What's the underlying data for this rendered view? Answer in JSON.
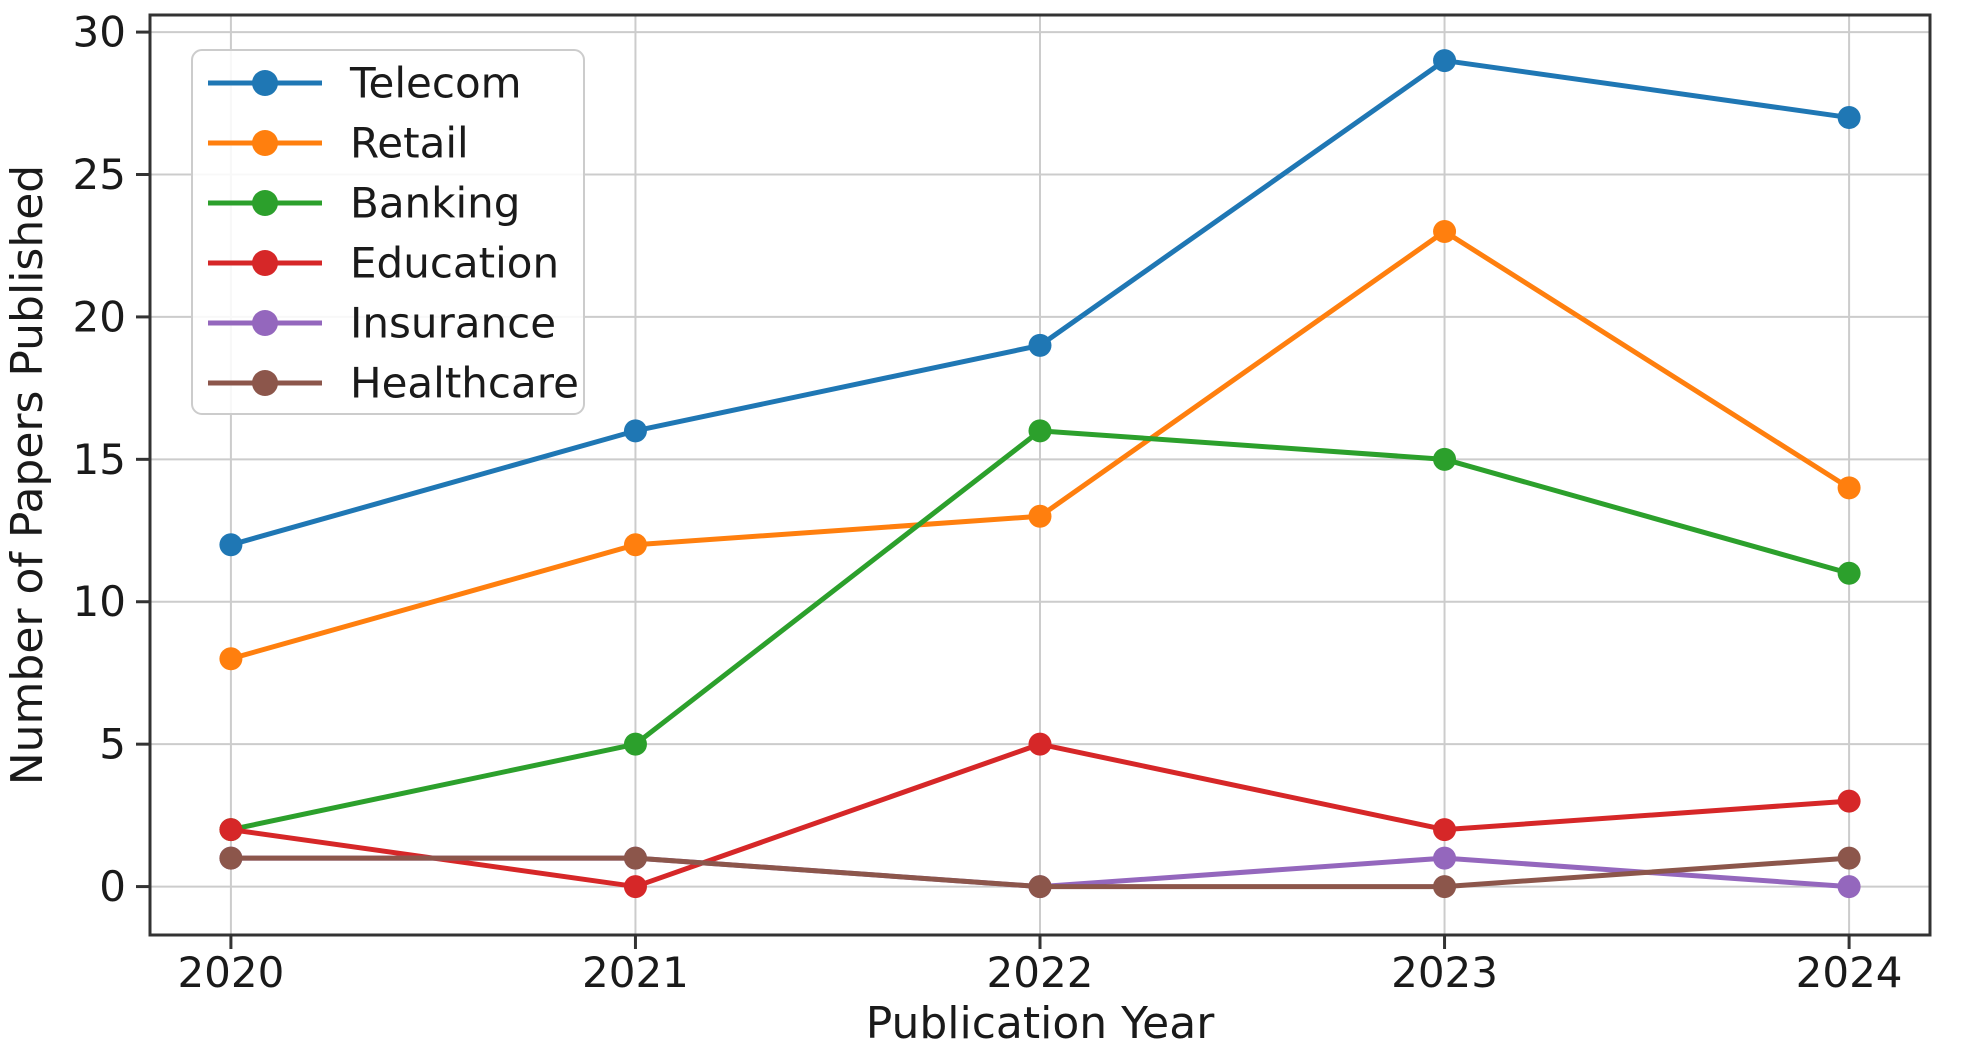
{
  "chart_data": {
    "type": "line",
    "title": "",
    "xlabel": "Publication Year",
    "ylabel": "Number of Papers Published",
    "x": [
      2020,
      2021,
      2022,
      2023,
      2024
    ],
    "x_tick_labels": [
      "2020",
      "2021",
      "2022",
      "2023",
      "2024"
    ],
    "y_ticks": [
      0,
      5,
      10,
      15,
      20,
      25,
      30
    ],
    "xlim": [
      2019.8,
      2024.2
    ],
    "ylim": [
      -1.7,
      30.6
    ],
    "grid": true,
    "legend_position": "upper left",
    "series": [
      {
        "name": "Telecom",
        "color": "#1f77b4",
        "values": [
          12,
          16,
          19,
          29,
          27
        ]
      },
      {
        "name": "Retail",
        "color": "#ff7f0e",
        "values": [
          8,
          12,
          13,
          23,
          14
        ]
      },
      {
        "name": "Banking",
        "color": "#2ca02c",
        "values": [
          2,
          5,
          16,
          15,
          11
        ]
      },
      {
        "name": "Education",
        "color": "#d62728",
        "values": [
          2,
          0,
          5,
          2,
          3
        ]
      },
      {
        "name": "Insurance",
        "color": "#9467bd",
        "values": [
          1,
          1,
          0,
          1,
          0
        ]
      },
      {
        "name": "Healthcare",
        "color": "#8c564b",
        "values": [
          1,
          1,
          0,
          0,
          1
        ]
      }
    ],
    "style": {
      "grid_color": "#cccccc",
      "spine_color": "#333333",
      "background": "#ffffff",
      "legend_border": "#cccccc",
      "legend_background": "#ffffff"
    }
  }
}
